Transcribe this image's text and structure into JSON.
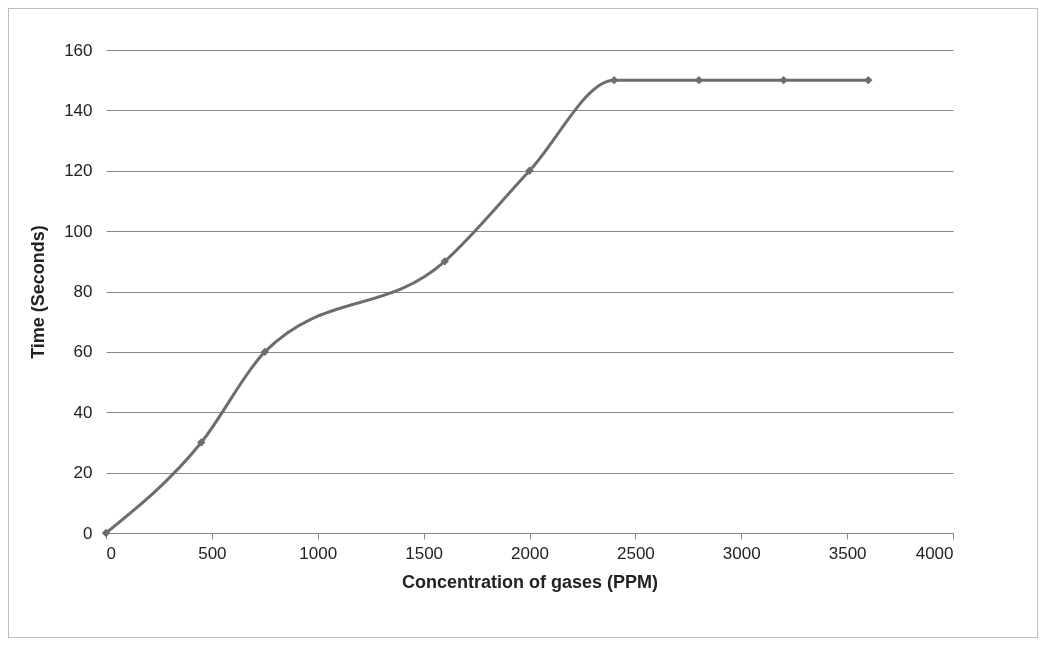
{
  "chart_data": {
    "type": "line",
    "xlabel": "Concentration of gases  (PPM)",
    "ylabel": "Time (Seconds)",
    "x": [
      0,
      450,
      750,
      1600,
      2000,
      2400,
      2800,
      3200,
      3600
    ],
    "series": [
      {
        "color": "#6d6d6d",
        "values": [
          0,
          30,
          60,
          90,
          120,
          150,
          150,
          150,
          150
        ]
      }
    ],
    "xlim": [
      0,
      4000
    ],
    "xticks": [
      0,
      500,
      1000,
      1500,
      2000,
      2500,
      3000,
      3500,
      4000
    ],
    "ylim": [
      0,
      160
    ],
    "yticks": [
      0,
      20,
      40,
      60,
      80,
      100,
      120,
      140,
      160
    ],
    "grid": "y",
    "marker": "diamond",
    "line_style": "solid",
    "legend": false
  }
}
